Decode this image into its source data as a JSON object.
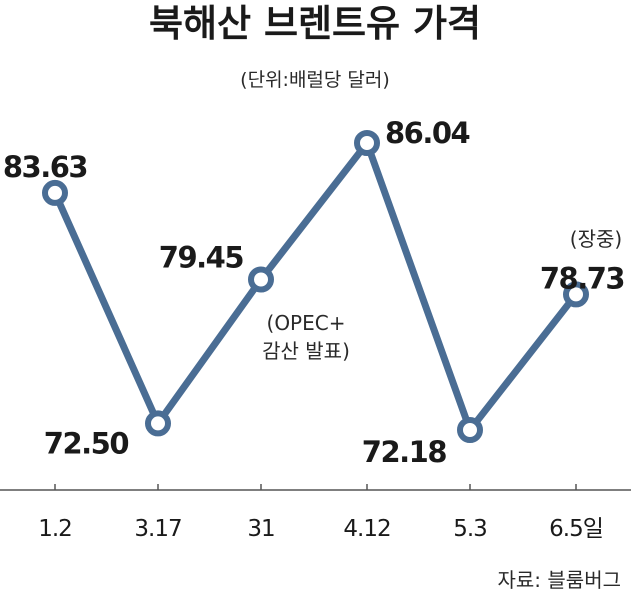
{
  "chart_data": {
    "type": "line",
    "title": "북해산 브렌트유 가격",
    "subtitle": "(단위:배럴당 달러)",
    "x": [
      "1.2",
      "3.17",
      "31",
      "4.12",
      "5.3",
      "6.5일"
    ],
    "values": [
      83.63,
      72.5,
      79.45,
      86.04,
      72.18,
      78.73
    ],
    "value_labels": [
      "83.63",
      "72.50",
      "79.45",
      "86.04",
      "72.18",
      "78.73"
    ],
    "ylim": [
      70,
      88
    ],
    "grid": false,
    "legend": "none",
    "annotations": [
      {
        "text": "(OPEC+",
        "anchor_index": 2
      },
      {
        "text": "감산 발표)",
        "anchor_index": 2
      },
      {
        "text": "(장중)",
        "anchor_index": 5
      }
    ],
    "source": "자료: 블룸버그",
    "colors": {
      "line": "#4a6d94",
      "marker_fill": "#ffffff",
      "axis": "#555555"
    }
  }
}
